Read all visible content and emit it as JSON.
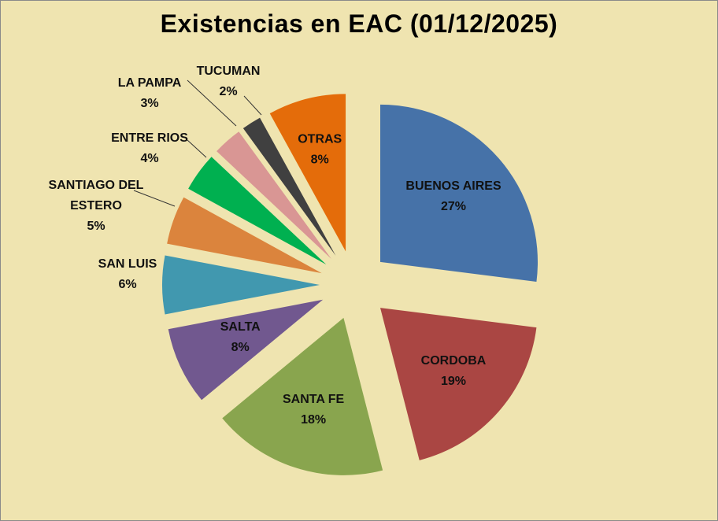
{
  "chart_data": {
    "type": "pie",
    "title": "Existencias en EAC (01/12/2025)",
    "exploded": true,
    "slices": [
      {
        "label": "BUENOS AIRES",
        "value": 27,
        "percent_label": "27%",
        "color": "#4672a8"
      },
      {
        "label": "CORDOBA",
        "value": 19,
        "percent_label": "19%",
        "color": "#aa4643"
      },
      {
        "label": "SANTA FE",
        "value": 18,
        "percent_label": "18%",
        "color": "#89a54e"
      },
      {
        "label": "SALTA",
        "value": 8,
        "percent_label": "8%",
        "color": "#71588f"
      },
      {
        "label": "SAN LUIS",
        "value": 6,
        "percent_label": "6%",
        "color": "#4198af"
      },
      {
        "label": "SANTIAGO DEL ESTERO",
        "label_lines": [
          "SANTIAGO DEL",
          "ESTERO"
        ],
        "value": 5,
        "percent_label": "5%",
        "color": "#db843d"
      },
      {
        "label": "ENTRE RIOS",
        "value": 4,
        "percent_label": "4%",
        "color": "#00b050"
      },
      {
        "label": "LA PAMPA",
        "value": 3,
        "percent_label": "3%",
        "color": "#d99694"
      },
      {
        "label": "TUCUMAN",
        "value": 2,
        "percent_label": "2%",
        "color": "#404040"
      },
      {
        "label": "OTRAS",
        "value": 8,
        "percent_label": "8%",
        "color": "#e46c0a"
      }
    ]
  }
}
